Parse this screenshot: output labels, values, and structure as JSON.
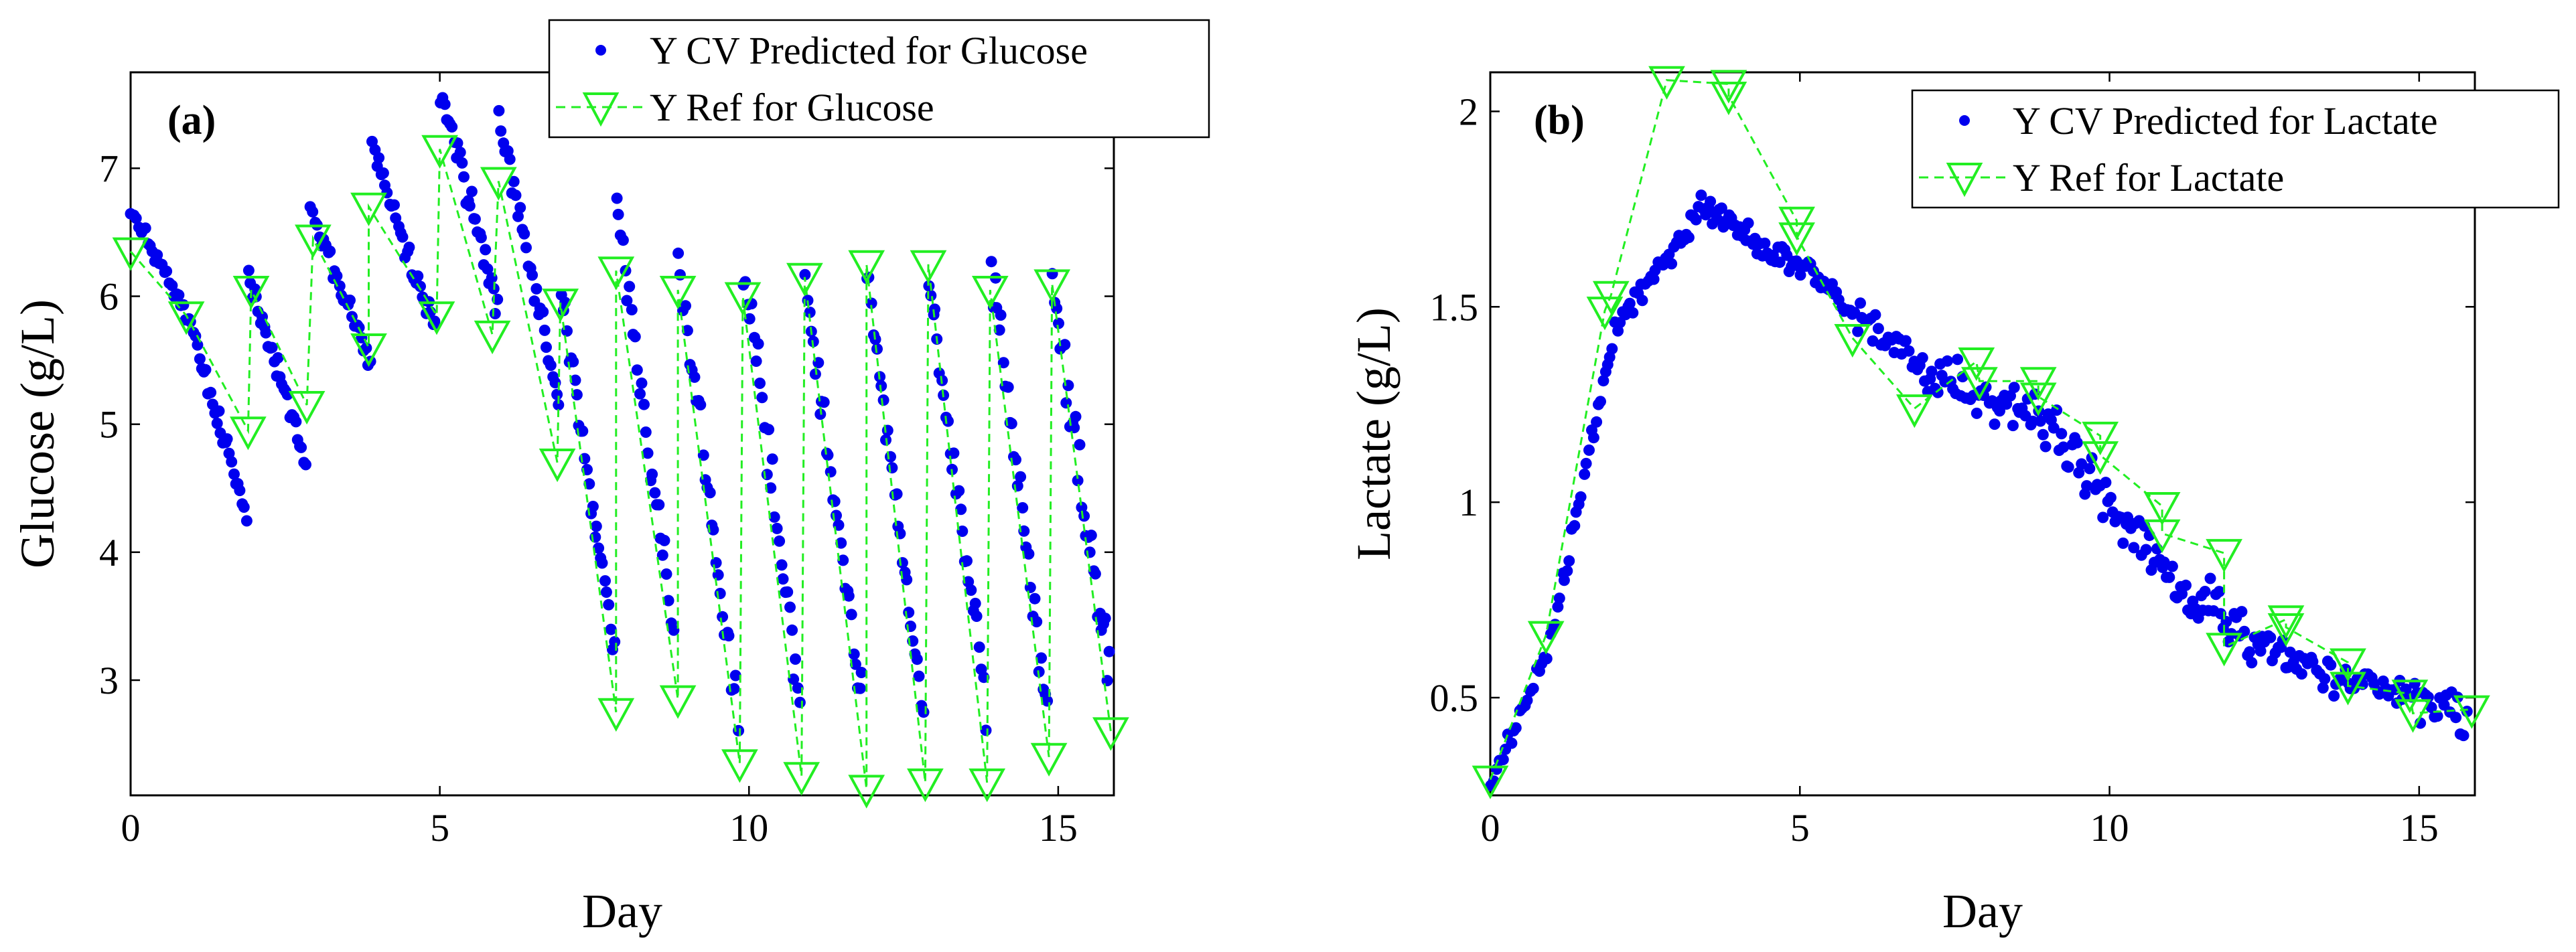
{
  "chart_data": [
    {
      "type": "scatter",
      "panel_label": "(a)",
      "xlabel": "Day",
      "ylabel": "Glucose (g/L)",
      "xlim": [
        0,
        15.9
      ],
      "ylim": [
        2.1,
        7.75
      ],
      "xticks": [
        0,
        5,
        10,
        15
      ],
      "yticks": [
        3,
        4,
        5,
        6,
        7
      ],
      "legend": "top-right",
      "series": [
        {
          "name": "Y CV Predicted for Glucose",
          "color": "#0000ee",
          "marker": "dot",
          "segments": [
            {
              "from": [
                0.0,
                6.68
              ],
              "to": [
                1.0,
                5.75
              ],
              "count": 26,
              "noise": 0.08
            },
            {
              "from": [
                1.0,
                5.72
              ],
              "to": [
                1.9,
                4.22
              ],
              "count": 26,
              "noise": 0.12
            },
            {
              "from": [
                1.9,
                6.22
              ],
              "to": [
                2.85,
                4.65
              ],
              "count": 30,
              "noise": 0.12
            },
            {
              "from": [
                2.9,
                6.7
              ],
              "to": [
                3.9,
                5.45
              ],
              "count": 28,
              "noise": 0.12
            },
            {
              "from": [
                3.9,
                7.15
              ],
              "to": [
                4.95,
                5.7
              ],
              "count": 30,
              "noise": 0.14
            },
            {
              "from": [
                5.0,
                7.65
              ],
              "to": [
                5.95,
                5.9
              ],
              "count": 30,
              "noise": 0.16
            },
            {
              "from": [
                5.95,
                7.4
              ],
              "to": [
                6.95,
                5.1
              ],
              "count": 30,
              "noise": 0.16
            },
            {
              "from": [
                6.95,
                6.1
              ],
              "to": [
                7.85,
                3.1
              ],
              "count": 28,
              "noise": 0.18
            },
            {
              "from": [
                7.85,
                6.75
              ],
              "to": [
                8.8,
                3.3
              ],
              "count": 28,
              "noise": 0.22
            },
            {
              "from": [
                8.85,
                6.25
              ],
              "to": [
                9.85,
                2.6
              ],
              "count": 28,
              "noise": 0.24
            },
            {
              "from": [
                9.9,
                6.35
              ],
              "to": [
                10.85,
                2.7
              ],
              "count": 28,
              "noise": 0.26
            },
            {
              "from": [
                10.9,
                6.2
              ],
              "to": [
                11.85,
                2.8
              ],
              "count": 28,
              "noise": 0.26
            },
            {
              "from": [
                11.9,
                6.2
              ],
              "to": [
                12.85,
                2.6
              ],
              "count": 28,
              "noise": 0.26
            },
            {
              "from": [
                12.9,
                6.15
              ],
              "to": [
                13.85,
                2.75
              ],
              "count": 28,
              "noise": 0.26
            },
            {
              "from": [
                13.9,
                6.35
              ],
              "to": [
                14.85,
                2.6
              ],
              "count": 28,
              "noise": 0.26
            },
            {
              "from": [
                14.9,
                6.1
              ],
              "to": [
                15.85,
                3.0
              ],
              "count": 30,
              "noise": 0.26
            }
          ]
        },
        {
          "name": "Y Ref for Glucose",
          "color": "#22ee22",
          "marker": "triangle-down",
          "line": "dashed",
          "x": [
            0,
            0.9,
            1.9,
            1.95,
            2.85,
            2.95,
            3.85,
            3.85,
            4.95,
            5.0,
            5.85,
            5.95,
            6.9,
            6.95,
            7.85,
            7.85,
            8.85,
            8.85,
            9.85,
            9.9,
            10.85,
            10.9,
            11.9,
            11.9,
            12.85,
            12.9,
            13.85,
            13.9,
            14.85,
            14.9,
            15.85
          ],
          "y": [
            6.35,
            5.85,
            4.95,
            6.05,
            5.15,
            6.45,
            5.6,
            6.7,
            5.85,
            7.15,
            5.7,
            6.9,
            4.7,
            5.95,
            2.75,
            6.2,
            2.85,
            6.05,
            2.35,
            6.0,
            2.25,
            6.15,
            2.15,
            6.25,
            2.2,
            6.25,
            2.2,
            6.05,
            2.4,
            6.1,
            2.6
          ]
        }
      ]
    },
    {
      "type": "scatter",
      "panel_label": "(b)",
      "xlabel": "Day",
      "ylabel": "Lactate (g/L)",
      "xlim": [
        0,
        15.9
      ],
      "ylim": [
        0.25,
        2.1
      ],
      "xticks": [
        0,
        5,
        10,
        15
      ],
      "yticks": [
        0.5,
        1,
        1.5,
        2
      ],
      "legend": "top-right",
      "series": [
        {
          "name": "Y CV Predicted for Lactate",
          "color": "#0000ee",
          "marker": "dot",
          "segments": [
            {
              "from": [
                0.0,
                0.27
              ],
              "to": [
                1.0,
                0.65
              ],
              "count": 22,
              "noise": 0.03
            },
            {
              "from": [
                1.0,
                0.65
              ],
              "to": [
                2.0,
                1.45
              ],
              "count": 26,
              "noise": 0.04
            },
            {
              "from": [
                2.0,
                1.45
              ],
              "to": [
                3.4,
                1.74
              ],
              "count": 34,
              "noise": 0.04
            },
            {
              "from": [
                3.4,
                1.76
              ],
              "to": [
                5.0,
                1.6
              ],
              "count": 44,
              "noise": 0.04
            },
            {
              "from": [
                5.0,
                1.6
              ],
              "to": [
                7.0,
                1.35
              ],
              "count": 48,
              "noise": 0.05
            },
            {
              "from": [
                7.0,
                1.35
              ],
              "to": [
                9.0,
                1.2
              ],
              "count": 48,
              "noise": 0.07
            },
            {
              "from": [
                9.0,
                1.2
              ],
              "to": [
                11.0,
                0.8
              ],
              "count": 48,
              "noise": 0.08
            },
            {
              "from": [
                11.0,
                0.8
              ],
              "to": [
                13.0,
                0.58
              ],
              "count": 48,
              "noise": 0.09
            },
            {
              "from": [
                13.0,
                0.58
              ],
              "to": [
                15.8,
                0.45
              ],
              "count": 60,
              "noise": 0.06
            }
          ]
        },
        {
          "name": "Y Ref for Lactate",
          "color": "#22ee22",
          "marker": "triangle-down",
          "line": "dashed",
          "x": [
            0,
            0.9,
            1.85,
            1.95,
            2.85,
            3.85,
            3.85,
            4.95,
            4.95,
            5.85,
            6.85,
            7.85,
            7.9,
            8.85,
            8.85,
            9.85,
            9.85,
            10.85,
            10.85,
            11.85,
            11.85,
            12.85,
            12.85,
            13.85,
            13.85,
            14.85,
            14.9,
            15.85
          ],
          "y": [
            0.29,
            0.66,
            1.49,
            1.53,
            2.08,
            2.07,
            2.04,
            1.72,
            1.68,
            1.42,
            1.24,
            1.36,
            1.31,
            1.31,
            1.27,
            1.17,
            1.12,
            0.99,
            0.92,
            0.87,
            0.63,
            0.7,
            0.68,
            0.59,
            0.53,
            0.51,
            0.46,
            0.47
          ]
        }
      ]
    }
  ]
}
